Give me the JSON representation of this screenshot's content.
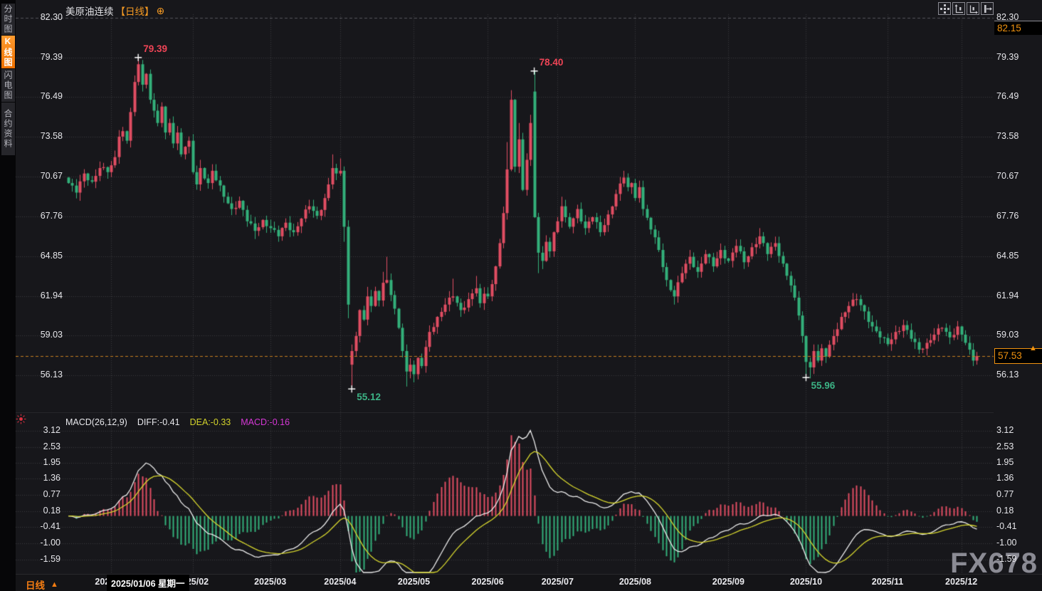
{
  "window": {
    "watermark": "FX678"
  },
  "sidebar": {
    "tabs": [
      {
        "label": "分时图",
        "active": false
      },
      {
        "label": "K线图",
        "active": true
      },
      {
        "label": "闪电图",
        "active": false
      },
      {
        "label": "合约资料",
        "active": false
      }
    ]
  },
  "header": {
    "symbol": "美原油连续",
    "period_tag": "【日线】",
    "settings_icon": "⊕"
  },
  "toolbar": {
    "icons": [
      "move-crosshair-icon",
      "price-axis-scale-icon",
      "time-axis-scale-icon",
      "exit-chart-icon"
    ]
  },
  "price_axis": {
    "ticks": [
      "82.30",
      "79.39",
      "76.49",
      "73.58",
      "70.67",
      "67.76",
      "64.85",
      "61.94",
      "59.03",
      "56.13"
    ],
    "high_marker": "82.15",
    "last_price": "57.53",
    "last_arrow": "▲"
  },
  "macd_axis": {
    "ticks": [
      "3.12",
      "2.53",
      "1.95",
      "1.36",
      "0.77",
      "0.18",
      "-0.41",
      "-1.00",
      "-1.59"
    ]
  },
  "macd_header": {
    "formula": "MACD(26,12,9)",
    "diff_label": "DIFF:-0.41",
    "dea_label": "DEA:-0.33",
    "macd_label": "MACD:-0.16"
  },
  "x_axis": {
    "labels": [
      "2025/01",
      "2025/02",
      "2025/03",
      "2025/04",
      "2025/05",
      "2025/06",
      "2025/07",
      "2025/08",
      "2025/09",
      "2025/10",
      "2025/11",
      "2025/12"
    ],
    "date_tooltip": "2025/01/06 星期一"
  },
  "footer": {
    "period_label": "日线",
    "arrow": "▲"
  },
  "annotations": [
    {
      "text": "79.39",
      "day": 18,
      "price": 79.39,
      "placement": "above",
      "color": "#ef4456"
    },
    {
      "text": "78.40",
      "day": 120,
      "price": 78.4,
      "placement": "above",
      "color": "#ef4456"
    },
    {
      "text": "55.12",
      "day": 73,
      "price": 55.12,
      "placement": "below",
      "color": "#3cb385"
    },
    {
      "text": "55.96",
      "day": 190,
      "price": 55.96,
      "placement": "below",
      "color": "#3cb385"
    }
  ],
  "chart_data": {
    "type": "candlestick",
    "symbol": "美原油连续",
    "period": "日线",
    "candle_count": 235,
    "price_axis_ticks": [
      82.3,
      79.39,
      76.49,
      73.58,
      70.67,
      67.76,
      64.85,
      61.94,
      59.03,
      56.13
    ],
    "price_scale_high_marker": 82.15,
    "last_close": 57.53,
    "month_tick_day_index": [
      11,
      32,
      52,
      70,
      89,
      108,
      126,
      146,
      170,
      190,
      211,
      230
    ],
    "key_points": [
      {
        "day": 18,
        "price": 79.39,
        "type": "high"
      },
      {
        "day": 120,
        "price": 78.4,
        "type": "high"
      },
      {
        "day": 73,
        "price": 55.12,
        "type": "low"
      },
      {
        "day": 190,
        "price": 55.96,
        "type": "low"
      }
    ],
    "close_waypoints": [
      [
        0,
        70.2
      ],
      [
        2,
        69.5
      ],
      [
        4,
        70.9
      ],
      [
        6,
        70.3
      ],
      [
        8,
        71.3
      ],
      [
        10,
        71.0
      ],
      [
        11,
        71.5
      ],
      [
        12,
        72.1
      ],
      [
        13,
        73.6
      ],
      [
        14,
        74.0
      ],
      [
        15,
        73.3
      ],
      [
        16,
        75.4
      ],
      [
        17,
        77.6
      ],
      [
        18,
        78.9
      ],
      [
        19,
        77.4
      ],
      [
        20,
        78.2
      ],
      [
        21,
        76.3
      ],
      [
        22,
        75.5
      ],
      [
        23,
        74.6
      ],
      [
        24,
        75.8
      ],
      [
        25,
        73.9
      ],
      [
        26,
        74.6
      ],
      [
        27,
        73.1
      ],
      [
        28,
        73.9
      ],
      [
        29,
        72.3
      ],
      [
        31,
        73.3
      ],
      [
        32,
        71.0
      ],
      [
        33,
        70.1
      ],
      [
        34,
        71.3
      ],
      [
        36,
        70.2
      ],
      [
        37,
        71.1
      ],
      [
        38,
        70.4
      ],
      [
        40,
        69.2
      ],
      [
        42,
        68.3
      ],
      [
        44,
        68.9
      ],
      [
        46,
        67.4
      ],
      [
        48,
        66.7
      ],
      [
        50,
        67.5
      ],
      [
        52,
        66.9
      ],
      [
        54,
        66.3
      ],
      [
        56,
        67.3
      ],
      [
        58,
        66.6
      ],
      [
        60,
        67.6
      ],
      [
        62,
        68.5
      ],
      [
        64,
        67.8
      ],
      [
        66,
        69.1
      ],
      [
        67,
        70.1
      ],
      [
        68,
        71.3
      ],
      [
        69,
        70.9
      ],
      [
        70,
        71.1
      ],
      [
        71,
        67.0
      ],
      [
        72,
        61.3
      ],
      [
        73,
        57.9
      ],
      [
        74,
        59.0
      ],
      [
        75,
        60.9
      ],
      [
        76,
        60.2
      ],
      [
        77,
        61.9
      ],
      [
        78,
        61.2
      ],
      [
        79,
        62.3
      ],
      [
        80,
        61.6
      ],
      [
        81,
        62.9
      ],
      [
        82,
        63.1
      ],
      [
        83,
        62.0
      ],
      [
        84,
        61.0
      ],
      [
        85,
        59.6
      ],
      [
        86,
        57.9
      ],
      [
        87,
        56.4
      ],
      [
        88,
        56.9
      ],
      [
        89,
        56.2
      ],
      [
        90,
        57.4
      ],
      [
        91,
        56.8
      ],
      [
        92,
        58.2
      ],
      [
        93,
        59.3
      ],
      [
        95,
        60.4
      ],
      [
        97,
        61.3
      ],
      [
        99,
        61.9
      ],
      [
        101,
        60.9
      ],
      [
        103,
        61.7
      ],
      [
        105,
        62.5
      ],
      [
        106,
        61.4
      ],
      [
        107,
        62.1
      ],
      [
        108,
        61.9
      ],
      [
        109,
        62.8
      ],
      [
        110,
        64.1
      ],
      [
        111,
        65.8
      ],
      [
        112,
        68.0
      ],
      [
        113,
        71.2
      ],
      [
        114,
        76.3
      ],
      [
        115,
        71.4
      ],
      [
        116,
        73.4
      ],
      [
        117,
        69.7
      ],
      [
        118,
        71.9
      ],
      [
        119,
        74.6
      ],
      [
        120,
        67.7
      ],
      [
        121,
        65.1
      ],
      [
        122,
        64.5
      ],
      [
        123,
        65.9
      ],
      [
        124,
        65.2
      ],
      [
        125,
        66.6
      ],
      [
        126,
        67.4
      ],
      [
        127,
        68.5
      ],
      [
        128,
        67.7
      ],
      [
        129,
        67.0
      ],
      [
        131,
        68.3
      ],
      [
        133,
        66.9
      ],
      [
        135,
        67.7
      ],
      [
        137,
        66.6
      ],
      [
        139,
        67.9
      ],
      [
        141,
        69.4
      ],
      [
        143,
        70.6
      ],
      [
        144,
        69.9
      ],
      [
        145,
        70.2
      ],
      [
        146,
        69.1
      ],
      [
        147,
        69.9
      ],
      [
        148,
        68.3
      ],
      [
        150,
        66.8
      ],
      [
        152,
        65.3
      ],
      [
        154,
        63.1
      ],
      [
        156,
        61.9
      ],
      [
        158,
        63.6
      ],
      [
        160,
        64.8
      ],
      [
        162,
        63.7
      ],
      [
        164,
        65.0
      ],
      [
        166,
        64.1
      ],
      [
        168,
        65.3
      ],
      [
        170,
        64.5
      ],
      [
        172,
        65.6
      ],
      [
        174,
        64.4
      ],
      [
        176,
        65.5
      ],
      [
        178,
        66.3
      ],
      [
        180,
        65.0
      ],
      [
        182,
        65.8
      ],
      [
        184,
        64.3
      ],
      [
        186,
        62.7
      ],
      [
        188,
        60.5
      ],
      [
        189,
        59.0
      ],
      [
        190,
        57.1
      ],
      [
        191,
        56.7
      ],
      [
        192,
        57.9
      ],
      [
        193,
        57.2
      ],
      [
        194,
        58.1
      ],
      [
        195,
        57.5
      ],
      [
        197,
        59.0
      ],
      [
        199,
        60.4
      ],
      [
        201,
        61.2
      ],
      [
        203,
        61.7
      ],
      [
        205,
        60.8
      ],
      [
        207,
        59.7
      ],
      [
        209,
        58.9
      ],
      [
        211,
        58.4
      ],
      [
        213,
        59.3
      ],
      [
        215,
        59.8
      ],
      [
        217,
        58.8
      ],
      [
        219,
        58.0
      ],
      [
        221,
        58.5
      ],
      [
        223,
        59.1
      ],
      [
        225,
        59.6
      ],
      [
        227,
        58.9
      ],
      [
        229,
        59.7
      ],
      [
        230,
        59.1
      ],
      [
        231,
        58.5
      ],
      [
        232,
        58.0
      ],
      [
        233,
        57.2
      ],
      [
        234,
        57.53
      ]
    ],
    "wick_highs": {
      "18": 79.39,
      "34": 71.9,
      "68": 72.3,
      "70": 72.0,
      "77": 62.6,
      "81": 63.7,
      "82": 64.8,
      "99": 63.2,
      "105": 63.4,
      "113": 73.2,
      "114": 77.0,
      "116": 74.6,
      "119": 75.2,
      "120": 78.4,
      "127": 69.2,
      "143": 71.1,
      "160": 65.3,
      "178": 66.9,
      "203": 62.1,
      "215": 60.2,
      "229": 60.1
    },
    "wick_lows": {
      "3": 68.9,
      "48": 66.1,
      "54": 65.9,
      "71": 65.9,
      "72": 60.3,
      "73": 55.12,
      "87": 55.3,
      "88": 55.9,
      "89": 55.6,
      "121": 63.6,
      "122": 63.9,
      "156": 61.3,
      "190": 55.96,
      "191": 55.9,
      "205": 60.2,
      "233": 56.8,
      "234": 56.9
    },
    "open_overrides": {
      "73": 56.9,
      "120": 76.9
    },
    "macd": {
      "params": [
        26,
        12,
        9
      ],
      "last_diff": -0.41,
      "last_dea": -0.33,
      "last_macd": -0.16,
      "axis_ticks": [
        3.12,
        2.53,
        1.95,
        1.36,
        0.77,
        0.18,
        -0.41,
        -1.0,
        -1.59
      ],
      "histogram_rule": "2*(DIFF-DEA)"
    },
    "colors": {
      "up": "#e14d62",
      "down": "#33b07a",
      "diff_line": "#ececec",
      "dea_line": "#d6d62e",
      "macd_value": "#d637d6",
      "grid": "#3b3b40",
      "last_price_line": "#c87f1f",
      "accent_orange": "#f57d12",
      "annotation_high": "#ef4456",
      "annotation_low": "#3cb385"
    }
  }
}
